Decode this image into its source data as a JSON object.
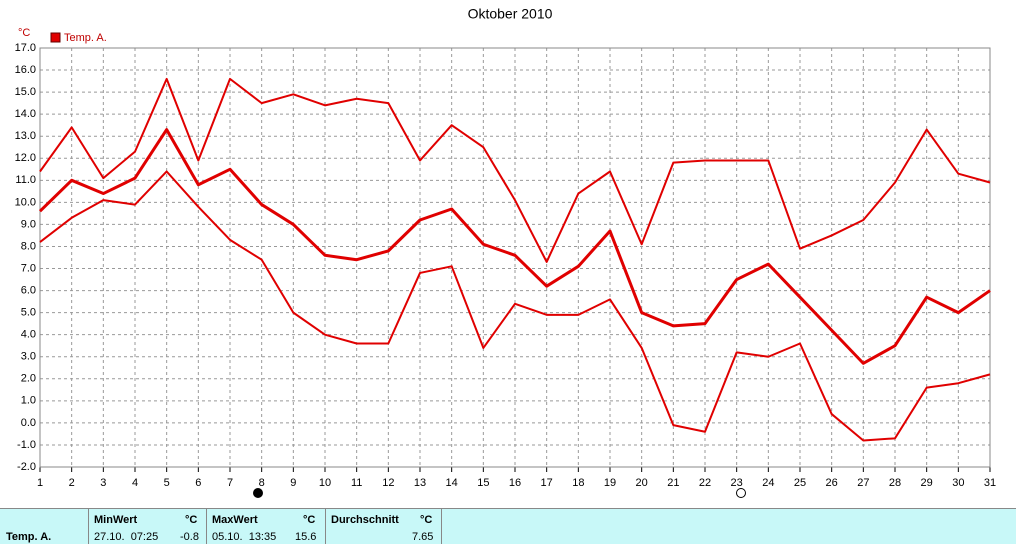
{
  "chart_data": {
    "type": "line",
    "title": "Oktober 2010",
    "y_label": "°C",
    "x": [
      1,
      2,
      3,
      4,
      5,
      6,
      7,
      8,
      9,
      10,
      11,
      12,
      13,
      14,
      15,
      16,
      17,
      18,
      19,
      20,
      21,
      22,
      23,
      24,
      25,
      26,
      27,
      28,
      29,
      30,
      31
    ],
    "xlim": [
      1,
      31
    ],
    "xticks": [
      1,
      2,
      3,
      4,
      5,
      6,
      7,
      8,
      9,
      10,
      11,
      12,
      13,
      14,
      15,
      16,
      17,
      18,
      19,
      20,
      21,
      22,
      23,
      24,
      25,
      26,
      27,
      28,
      29,
      30,
      31
    ],
    "ylim": [
      -2,
      17
    ],
    "yticks": [
      {
        "value": -2,
        "label": "-2.0"
      },
      {
        "value": -1,
        "label": "-1.0"
      },
      {
        "value": 0,
        "label": "0.0"
      },
      {
        "value": 1,
        "label": "1.0"
      },
      {
        "value": 2,
        "label": "2.0"
      },
      {
        "value": 3,
        "label": "3.0"
      },
      {
        "value": 4,
        "label": "4.0"
      },
      {
        "value": 5,
        "label": "5.0"
      },
      {
        "value": 6,
        "label": "6.0"
      },
      {
        "value": 7,
        "label": "7.0"
      },
      {
        "value": 8,
        "label": "8.0"
      },
      {
        "value": 9,
        "label": "9.0"
      },
      {
        "value": 10,
        "label": "10.0"
      },
      {
        "value": 11,
        "label": "11.0"
      },
      {
        "value": 12,
        "label": "12.0"
      },
      {
        "value": 13,
        "label": "13.0"
      },
      {
        "value": 14,
        "label": "14.0"
      },
      {
        "value": 15,
        "label": "15.0"
      },
      {
        "value": 16,
        "label": "16.0"
      },
      {
        "value": 17,
        "label": "17.0"
      }
    ],
    "grid": true,
    "series": [
      {
        "name": "Temp. A.",
        "color": "#e00000",
        "width": 3,
        "values": [
          9.6,
          11.0,
          10.4,
          11.1,
          13.3,
          10.8,
          11.5,
          9.9,
          9.0,
          7.6,
          7.4,
          7.8,
          9.2,
          9.7,
          8.1,
          7.6,
          6.2,
          7.1,
          8.7,
          5.0,
          4.4,
          4.5,
          6.5,
          7.2,
          5.7,
          4.2,
          2.7,
          3.5,
          5.7,
          5.0,
          6.0
        ]
      },
      {
        "color": "#e00000",
        "width": 2,
        "values": [
          11.4,
          13.4,
          11.1,
          12.3,
          15.6,
          11.9,
          15.6,
          14.5,
          14.9,
          14.4,
          14.7,
          14.5,
          11.9,
          13.5,
          12.5,
          10.1,
          7.3,
          10.4,
          11.4,
          8.1,
          11.8,
          11.9,
          11.9,
          11.9,
          7.9,
          8.5,
          9.2,
          10.9,
          13.3,
          11.3,
          10.9
        ]
      },
      {
        "color": "#e00000",
        "width": 2,
        "values": [
          8.2,
          9.3,
          10.1,
          9.9,
          11.4,
          9.8,
          8.3,
          7.4,
          5.0,
          4.0,
          3.6,
          3.6,
          6.8,
          7.1,
          3.4,
          5.4,
          4.9,
          4.9,
          5.6,
          3.4,
          -0.1,
          -0.4,
          3.2,
          3.0,
          3.6,
          0.4,
          -0.8,
          -0.7,
          1.6,
          1.8,
          2.2
        ]
      }
    ]
  },
  "summary": {
    "row_label": "Temp. A.",
    "min": {
      "label": "MinWert",
      "unit": "°C",
      "when": "27.10.  07:25",
      "value": "-0.8"
    },
    "max": {
      "label": "MaxWert",
      "unit": "°C",
      "when": "05.10.  13:35",
      "value": "15.6"
    },
    "avg": {
      "label": "Durchschnitt",
      "unit": "°C",
      "value": "7.65"
    }
  }
}
